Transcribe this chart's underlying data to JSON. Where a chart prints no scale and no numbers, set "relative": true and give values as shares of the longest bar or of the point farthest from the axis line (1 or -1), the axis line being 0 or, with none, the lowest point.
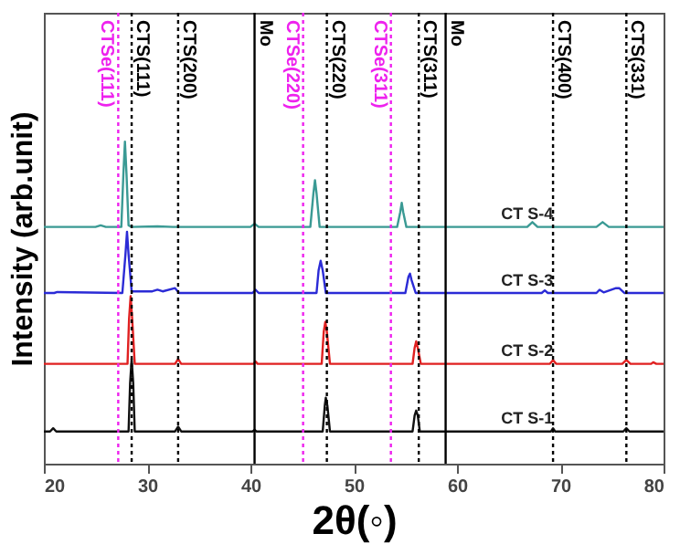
{
  "chart_data": {
    "type": "line",
    "relative": true,
    "xlabel": "2θ(◦)",
    "ylabel": "Intensity (arb.unit)",
    "xlim": [
      20,
      80
    ],
    "xticks": [
      20,
      30,
      40,
      50,
      60,
      70,
      80
    ],
    "tick_labels": "x",
    "grid": false,
    "marker": "none",
    "line_style": "solid",
    "series": [
      {
        "name": "CT S-4",
        "color": "#3a9a94",
        "x": [
          20,
          25,
          25.5,
          26,
          27.5,
          27.7,
          27.85,
          28.0,
          28.2,
          28.5,
          31,
          32.5,
          40.0,
          40.4,
          40.8,
          45.8,
          46.1,
          46.25,
          46.4,
          46.7,
          54.2,
          54.5,
          54.65,
          54.8,
          55.1,
          66.8,
          67.3,
          67.8,
          73.5,
          74.1,
          74.7,
          80
        ],
        "values": [
          0.735,
          0.735,
          0.74,
          0.735,
          0.735,
          0.9,
          1.0,
          0.9,
          0.74,
          0.735,
          0.737,
          0.735,
          0.735,
          0.745,
          0.735,
          0.735,
          0.84,
          0.88,
          0.84,
          0.735,
          0.735,
          0.78,
          0.81,
          0.78,
          0.735,
          0.735,
          0.75,
          0.735,
          0.735,
          0.75,
          0.735,
          0.735
        ]
      },
      {
        "name": "CT S-3",
        "color": "#2b2bd6",
        "x": [
          20,
          21,
          21.3,
          27.6,
          27.9,
          28.05,
          28.2,
          28.5,
          30.5,
          31,
          31.5,
          32.7,
          33.1,
          40.2,
          40.5,
          40.8,
          46.4,
          46.6,
          46.8,
          47.0,
          47.3,
          55.0,
          55.3,
          55.45,
          55.6,
          56.0,
          68.2,
          68.5,
          68.8,
          73.5,
          73.8,
          74.2,
          75.4,
          75.7,
          76.2,
          80
        ],
        "values": [
          0.53,
          0.53,
          0.533,
          0.53,
          0.65,
          0.72,
          0.65,
          0.535,
          0.535,
          0.54,
          0.535,
          0.545,
          0.53,
          0.53,
          0.54,
          0.53,
          0.53,
          0.6,
          0.63,
          0.6,
          0.53,
          0.53,
          0.58,
          0.59,
          0.57,
          0.53,
          0.53,
          0.538,
          0.53,
          0.53,
          0.54,
          0.532,
          0.545,
          0.545,
          0.53,
          0.53
        ]
      },
      {
        "name": "CT S-2",
        "color": "#e02020",
        "x": [
          20,
          28.1,
          28.25,
          28.4,
          28.55,
          28.8,
          32.7,
          33.0,
          33.3,
          40.3,
          40.5,
          40.7,
          46.9,
          47.1,
          47.25,
          47.4,
          47.7,
          55.7,
          55.9,
          56.05,
          56.2,
          56.5,
          69.0,
          69.3,
          69.6,
          76.0,
          76.4,
          76.8,
          78.8,
          79,
          79.3,
          80
        ],
        "values": [
          0.31,
          0.31,
          0.45,
          0.52,
          0.45,
          0.31,
          0.31,
          0.325,
          0.31,
          0.31,
          0.317,
          0.31,
          0.31,
          0.41,
          0.44,
          0.41,
          0.31,
          0.31,
          0.36,
          0.38,
          0.36,
          0.31,
          0.31,
          0.322,
          0.31,
          0.31,
          0.322,
          0.31,
          0.31,
          0.315,
          0.31,
          0.31
        ]
      },
      {
        "name": "CT S-1",
        "color": "#111111",
        "x": [
          20,
          20.6,
          20.9,
          21.2,
          28.2,
          28.35,
          28.5,
          28.65,
          28.8,
          32.7,
          33.0,
          33.3,
          40.2,
          40.4,
          40.6,
          47.0,
          47.2,
          47.3,
          47.45,
          47.7,
          55.7,
          55.9,
          56.05,
          56.2,
          56.4,
          69.1,
          69.3,
          69.5,
          76.1,
          76.4,
          76.7,
          80
        ],
        "values": [
          0.1,
          0.1,
          0.11,
          0.1,
          0.1,
          0.25,
          0.325,
          0.25,
          0.1,
          0.1,
          0.115,
          0.1,
          0.1,
          0.105,
          0.1,
          0.1,
          0.18,
          0.205,
          0.18,
          0.1,
          0.1,
          0.15,
          0.165,
          0.15,
          0.1,
          0.1,
          0.11,
          0.1,
          0.1,
          0.11,
          0.1,
          0.1
        ]
      }
    ],
    "ref_lines": [
      {
        "axis": "x",
        "value": 27.2,
        "label": "CTSe(111)",
        "color": "#ee22ee",
        "line_style": "dotted"
      },
      {
        "axis": "x",
        "value": 28.5,
        "label": "CTS(111)",
        "color": "#000000",
        "line_style": "dotted"
      },
      {
        "axis": "x",
        "value": 33.0,
        "label": "CTS(200)",
        "color": "#000000",
        "line_style": "dotted"
      },
      {
        "axis": "x",
        "value": 40.4,
        "label": "Mo",
        "color": "#000000",
        "line_style": "solid"
      },
      {
        "axis": "x",
        "value": 45.1,
        "label": "CTSe(220)",
        "color": "#ee22ee",
        "line_style": "dotted"
      },
      {
        "axis": "x",
        "value": 47.4,
        "label": "CTS(220)",
        "color": "#000000",
        "line_style": "dotted"
      },
      {
        "axis": "x",
        "value": 53.6,
        "label": "CTSe(311)",
        "color": "#ee22ee",
        "line_style": "dotted"
      },
      {
        "axis": "x",
        "value": 56.3,
        "label": "CTS(311)",
        "color": "#000000",
        "line_style": "dotted"
      },
      {
        "axis": "x",
        "value": 58.9,
        "label": "Mo",
        "color": "#000000",
        "line_style": "solid"
      },
      {
        "axis": "x",
        "value": 69.3,
        "label": "CTS(400)",
        "color": "#000000",
        "line_style": "dotted"
      },
      {
        "axis": "x",
        "value": 76.4,
        "label": "CTS(331)",
        "color": "#000000",
        "line_style": "dotted"
      }
    ]
  }
}
